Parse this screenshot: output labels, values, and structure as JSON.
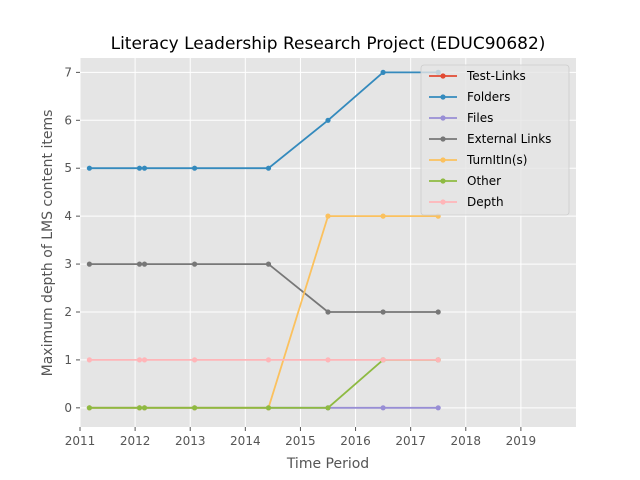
{
  "chart_data": {
    "type": "line",
    "title": "Literacy Leadership Research Project (EDUC90682)",
    "xlabel": "Time Period",
    "ylabel": "Maximum depth of LMS content items",
    "xlim": [
      2011,
      2020
    ],
    "ylim": [
      -0.4,
      7.3
    ],
    "xticks": [
      2011,
      2012,
      2013,
      2014,
      2015,
      2016,
      2017,
      2018,
      2019
    ],
    "yticks": [
      0,
      1,
      2,
      3,
      4,
      5,
      6,
      7
    ],
    "grid": true,
    "legend_position": "top-right",
    "x": [
      2011.17,
      2012.08,
      2012.17,
      2013.08,
      2014.42,
      2015.5,
      2016.5,
      2017.5
    ],
    "series": [
      {
        "name": "Test-Links",
        "color": "#E24A33",
        "values": [
          null,
          null,
          null,
          null,
          null,
          null,
          null,
          null
        ]
      },
      {
        "name": "Folders",
        "color": "#348ABD",
        "values": [
          5,
          5,
          5,
          5,
          5,
          6,
          7,
          7
        ]
      },
      {
        "name": "Files",
        "color": "#988ED5",
        "values": [
          0,
          0,
          0,
          0,
          0,
          0,
          0,
          0
        ]
      },
      {
        "name": "External Links",
        "color": "#777777",
        "values": [
          3,
          3,
          3,
          3,
          3,
          2,
          2,
          2
        ]
      },
      {
        "name": "TurnItIn(s)",
        "color": "#FBC15E",
        "values": [
          0,
          0,
          0,
          0,
          0,
          4,
          4,
          4
        ]
      },
      {
        "name": "Other",
        "color": "#8EBA42",
        "values": [
          0,
          0,
          0,
          0,
          0,
          0,
          1,
          1
        ]
      },
      {
        "name": "Depth",
        "color": "#FFB5B8",
        "values": [
          1,
          1,
          1,
          1,
          1,
          1,
          1,
          1
        ]
      }
    ]
  }
}
